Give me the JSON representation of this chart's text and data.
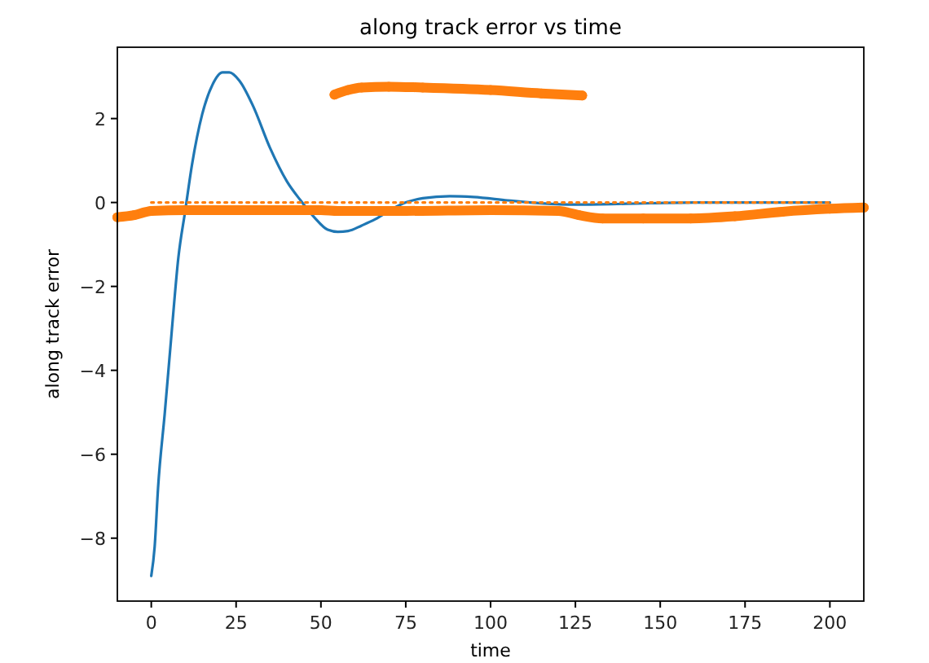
{
  "chart_data": {
    "type": "line",
    "title": "along track error vs time",
    "xlabel": "time",
    "ylabel": "along track error",
    "xlim": [
      -10,
      210
    ],
    "ylim": [
      -9.5,
      3.7
    ],
    "xticks": [
      0,
      25,
      50,
      75,
      100,
      125,
      150,
      175,
      200
    ],
    "yticks": [
      -8,
      -6,
      -4,
      -2,
      0,
      2
    ],
    "grid": false,
    "series": [
      {
        "color": "#1f77b4",
        "line_style": "solid",
        "marker": "none",
        "x": [
          0,
          1,
          2,
          4,
          6,
          8,
          10,
          12,
          15,
          18,
          21,
          23,
          26,
          30,
          35,
          40,
          44,
          48,
          52,
          55,
          58,
          62,
          66,
          70,
          75,
          80,
          88,
          95,
          105,
          115,
          125,
          140,
          160,
          200
        ],
        "values": [
          -8.9,
          -8.2,
          -6.8,
          -5.0,
          -3.1,
          -1.3,
          -0.2,
          0.9,
          2.1,
          2.8,
          3.1,
          3.1,
          2.9,
          2.3,
          1.3,
          0.5,
          0.05,
          -0.35,
          -0.65,
          -0.7,
          -0.68,
          -0.55,
          -0.4,
          -0.2,
          0.0,
          0.1,
          0.15,
          0.13,
          0.05,
          -0.02,
          -0.05,
          -0.03,
          0,
          0
        ]
      },
      {
        "color": "#ff7f0e",
        "line_style": "dotted",
        "marker": "none",
        "x": [
          0,
          200
        ],
        "values": [
          0,
          0
        ]
      },
      {
        "color": "#ff7f0e",
        "line_style": "solid",
        "marker": "circle",
        "x": [
          -10,
          -5,
          0,
          10,
          30,
          50,
          55,
          75,
          100,
          120,
          126,
          133,
          145,
          159,
          172,
          186,
          200,
          210
        ],
        "values": [
          -0.35,
          -0.3,
          -0.2,
          -0.18,
          -0.18,
          -0.18,
          -0.2,
          -0.2,
          -0.18,
          -0.2,
          -0.3,
          -0.38,
          -0.38,
          -0.38,
          -0.33,
          -0.22,
          -0.15,
          -0.12
        ]
      },
      {
        "color": "#ff7f0e",
        "line_style": "solid",
        "marker": "circle",
        "x": [
          54,
          58,
          62,
          70,
          80,
          100,
          115,
          127
        ],
        "values": [
          2.57,
          2.68,
          2.74,
          2.76,
          2.74,
          2.68,
          2.6,
          2.55
        ]
      }
    ]
  }
}
